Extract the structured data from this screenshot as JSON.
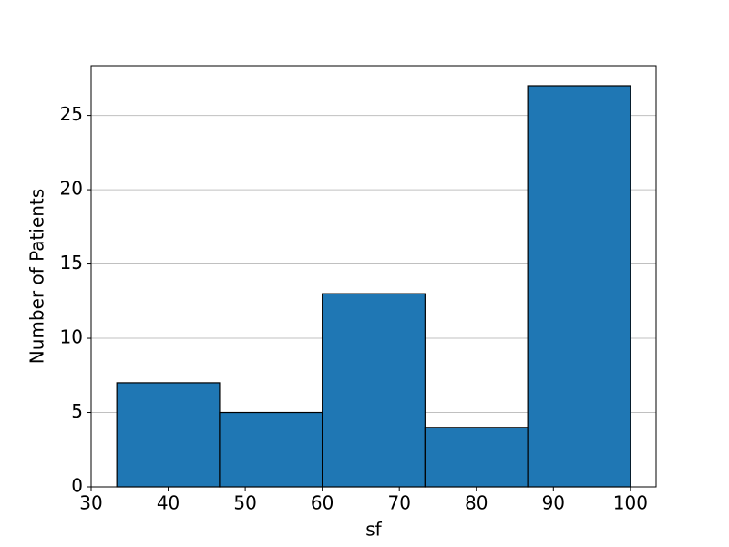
{
  "chart_data": {
    "type": "histogram",
    "x_label": "sf",
    "y_label": "Number of Patients",
    "bins": [
      33.33,
      46.67,
      60,
      73.33,
      86.67,
      100
    ],
    "values": [
      7,
      5,
      13,
      4,
      27
    ],
    "color": "#1f77b4",
    "xlim": [
      30,
      103.33
    ],
    "xticks": [
      30,
      40,
      50,
      60,
      70,
      80,
      90,
      100
    ],
    "ylim": [
      0,
      28.35
    ],
    "yticks": [
      0,
      5,
      10,
      15,
      20,
      25
    ],
    "grid": "y"
  }
}
